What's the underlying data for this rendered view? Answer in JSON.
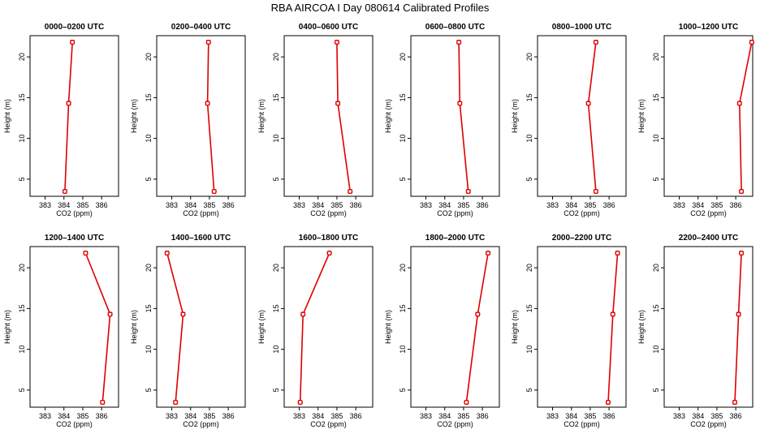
{
  "figure": {
    "title": "RBA AIRCOA I  Day 080614  Calibrated Profiles",
    "series_color": "#dd0000"
  },
  "chart_data": [
    {
      "type": "line",
      "title": "0000–0200 UTC",
      "xlabel": "CO2 (ppm)",
      "ylabel": "Height (m)",
      "xlim": [
        382.2,
        386.9
      ],
      "ylim": [
        2.9,
        22.6
      ],
      "xticks": [
        383,
        384,
        385,
        386
      ],
      "yticks": [
        5,
        10,
        15,
        20
      ],
      "x": [
        384.05,
        384.25,
        384.45
      ],
      "y": [
        3.5,
        14.3,
        21.8
      ]
    },
    {
      "type": "line",
      "title": "0200–0400 UTC",
      "xlabel": "CO2 (ppm)",
      "ylabel": "Height (m)",
      "xlim": [
        382.2,
        386.9
      ],
      "ylim": [
        2.9,
        22.6
      ],
      "xticks": [
        383,
        384,
        385,
        386
      ],
      "yticks": [
        5,
        10,
        15,
        20
      ],
      "x": [
        385.25,
        384.9,
        384.95
      ],
      "y": [
        3.5,
        14.3,
        21.8
      ]
    },
    {
      "type": "line",
      "title": "0400–0600 UTC",
      "xlabel": "CO2 (ppm)",
      "ylabel": "Height (m)",
      "xlim": [
        382.2,
        386.9
      ],
      "ylim": [
        2.9,
        22.6
      ],
      "xticks": [
        383,
        384,
        385,
        386
      ],
      "yticks": [
        5,
        10,
        15,
        20
      ],
      "x": [
        385.7,
        385.05,
        385.0
      ],
      "y": [
        3.5,
        14.3,
        21.8
      ]
    },
    {
      "type": "line",
      "title": "0600–0800 UTC",
      "xlabel": "CO2 (ppm)",
      "ylabel": "Height (m)",
      "xlim": [
        382.2,
        386.9
      ],
      "ylim": [
        2.9,
        22.6
      ],
      "xticks": [
        383,
        384,
        385,
        386
      ],
      "yticks": [
        5,
        10,
        15,
        20
      ],
      "x": [
        385.25,
        384.8,
        384.75
      ],
      "y": [
        3.5,
        14.3,
        21.8
      ]
    },
    {
      "type": "line",
      "title": "0800–1000 UTC",
      "xlabel": "CO2 (ppm)",
      "ylabel": "Height (m)",
      "xlim": [
        382.2,
        386.9
      ],
      "ylim": [
        2.9,
        22.6
      ],
      "xticks": [
        383,
        384,
        385,
        386
      ],
      "yticks": [
        5,
        10,
        15,
        20
      ],
      "x": [
        385.3,
        384.9,
        385.3
      ],
      "y": [
        3.5,
        14.3,
        21.8
      ]
    },
    {
      "type": "line",
      "title": "1000–1200 UTC",
      "xlabel": "CO2 (ppm)",
      "ylabel": "Height (m)",
      "xlim": [
        382.2,
        386.9
      ],
      "ylim": [
        2.9,
        22.6
      ],
      "xticks": [
        383,
        384,
        385,
        386
      ],
      "yticks": [
        5,
        10,
        15,
        20
      ],
      "x": [
        386.3,
        386.2,
        386.85
      ],
      "y": [
        3.5,
        14.3,
        21.8
      ]
    },
    {
      "type": "line",
      "title": "1200–1400 UTC",
      "xlabel": "CO2 (ppm)",
      "ylabel": "Height (m)",
      "xlim": [
        382.2,
        386.9
      ],
      "ylim": [
        2.9,
        22.6
      ],
      "xticks": [
        383,
        384,
        385,
        386
      ],
      "yticks": [
        5,
        10,
        15,
        20
      ],
      "x": [
        386.05,
        386.45,
        385.15
      ],
      "y": [
        3.5,
        14.3,
        21.8
      ]
    },
    {
      "type": "line",
      "title": "1400–1600 UTC",
      "xlabel": "CO2 (ppm)",
      "ylabel": "Height (m)",
      "xlim": [
        382.2,
        386.9
      ],
      "ylim": [
        2.9,
        22.6
      ],
      "xticks": [
        383,
        384,
        385,
        386
      ],
      "yticks": [
        5,
        10,
        15,
        20
      ],
      "x": [
        383.2,
        383.6,
        382.75
      ],
      "y": [
        3.5,
        14.3,
        21.8
      ]
    },
    {
      "type": "line",
      "title": "1600–1800 UTC",
      "xlabel": "CO2 (ppm)",
      "ylabel": "Height (m)",
      "xlim": [
        382.2,
        386.9
      ],
      "ylim": [
        2.9,
        22.6
      ],
      "xticks": [
        383,
        384,
        385,
        386
      ],
      "yticks": [
        5,
        10,
        15,
        20
      ],
      "x": [
        383.05,
        383.2,
        384.6
      ],
      "y": [
        3.5,
        14.3,
        21.8
      ]
    },
    {
      "type": "line",
      "title": "1800–2000 UTC",
      "xlabel": "CO2 (ppm)",
      "ylabel": "Height (m)",
      "xlim": [
        382.2,
        386.9
      ],
      "ylim": [
        2.9,
        22.6
      ],
      "xticks": [
        383,
        384,
        385,
        386
      ],
      "yticks": [
        5,
        10,
        15,
        20
      ],
      "x": [
        385.15,
        385.75,
        386.3
      ],
      "y": [
        3.5,
        14.3,
        21.8
      ]
    },
    {
      "type": "line",
      "title": "2000–2200 UTC",
      "xlabel": "CO2 (ppm)",
      "ylabel": "Height (m)",
      "xlim": [
        382.2,
        386.9
      ],
      "ylim": [
        2.9,
        22.6
      ],
      "xticks": [
        383,
        384,
        385,
        386
      ],
      "yticks": [
        5,
        10,
        15,
        20
      ],
      "x": [
        385.95,
        386.2,
        386.45
      ],
      "y": [
        3.5,
        14.3,
        21.8
      ]
    },
    {
      "type": "line",
      "title": "2200–2400 UTC",
      "xlabel": "CO2 (ppm)",
      "ylabel": "Height (m)",
      "xlim": [
        382.2,
        386.9
      ],
      "ylim": [
        2.9,
        22.6
      ],
      "xticks": [
        383,
        384,
        385,
        386
      ],
      "yticks": [
        5,
        10,
        15,
        20
      ],
      "x": [
        385.95,
        386.15,
        386.3
      ],
      "y": [
        3.5,
        14.3,
        21.8
      ]
    }
  ]
}
